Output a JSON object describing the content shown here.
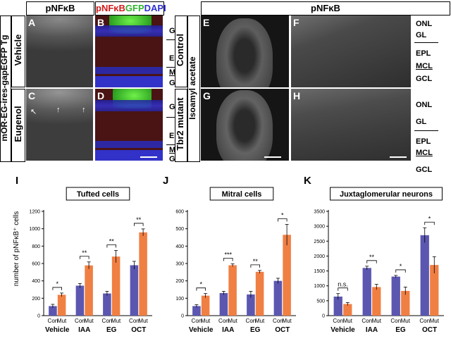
{
  "left_block": {
    "col_headers": [
      "pNFκB",
      ""
    ],
    "merge_header": {
      "p": "pNFκB",
      "g": "GFP",
      "d": "DAPI"
    },
    "row_title": "mOR-EG-ires-gapEGFP Tg",
    "rows": [
      "Vehicle",
      "Eugenol"
    ],
    "panel_letters": [
      "A",
      "B",
      "C",
      "D"
    ],
    "layers_top": [
      "GL",
      "EPL",
      "MCL",
      "GCL"
    ],
    "layers_bottom": [
      "GL",
      "EPL",
      "MCL",
      "GCL"
    ]
  },
  "right_block": {
    "header": "pNFκB",
    "row_title": "Isoamyl acetate",
    "rows": [
      "Control",
      "Tbr2 mutant"
    ],
    "panel_letters": [
      "E",
      "F",
      "G",
      "H"
    ],
    "layers_top": [
      "ONL",
      "GL",
      "EPL",
      "MCL",
      "GCL"
    ],
    "layers_bottom": [
      "ONL",
      "GL",
      "EPL",
      "MCL",
      "GCL"
    ]
  },
  "colors": {
    "con": "#5b57b0",
    "mut": "#f07f43",
    "merge_green": "#4ee82f",
    "merge_blue": "#3b3bdc",
    "merge_red": "#d11a1a"
  },
  "chart_data": [
    {
      "panel": "I",
      "type": "bar",
      "title": "Tufted cells",
      "ylabel": "number of pNFκB⁺ cells",
      "categories": [
        "Vehicle",
        "IAA",
        "EG",
        "OCT"
      ],
      "sub_labels": [
        "Con",
        "Mut"
      ],
      "ylim": [
        0,
        1200
      ],
      "yticks": [
        0,
        200,
        400,
        600,
        800,
        1000,
        1200
      ],
      "series": [
        {
          "name": "Con",
          "values": [
            110,
            345,
            255,
            580
          ],
          "errors": [
            20,
            25,
            25,
            45
          ]
        },
        {
          "name": "Mut",
          "values": [
            240,
            578,
            680,
            958
          ],
          "errors": [
            20,
            40,
            70,
            40
          ]
        }
      ],
      "significance": [
        "*",
        "**",
        "**",
        "**"
      ]
    },
    {
      "panel": "J",
      "type": "bar",
      "title": "Mitral cells",
      "categories": [
        "Vehicle",
        "IAA",
        "EG",
        "OCT"
      ],
      "sub_labels": [
        "Con",
        "Mut"
      ],
      "ylim": [
        0,
        600
      ],
      "yticks": [
        0,
        100,
        200,
        300,
        400,
        500,
        600
      ],
      "series": [
        {
          "name": "Con",
          "values": [
            55,
            130,
            122,
            200
          ],
          "errors": [
            8,
            10,
            18,
            15
          ]
        },
        {
          "name": "Mut",
          "values": [
            115,
            290,
            252,
            465
          ],
          "errors": [
            12,
            8,
            8,
            60
          ]
        }
      ],
      "significance": [
        "*",
        "***",
        "**",
        "*"
      ]
    },
    {
      "panel": "K",
      "type": "bar",
      "title": "Juxtaglomerular neurons",
      "categories": [
        "Vehicle",
        "IAA",
        "EG",
        "OCT"
      ],
      "sub_labels": [
        "Con",
        "Mut"
      ],
      "ylim": [
        0,
        3500
      ],
      "yticks": [
        0,
        500,
        1000,
        1500,
        2000,
        2500,
        3000,
        3500
      ],
      "series": [
        {
          "name": "Con",
          "values": [
            640,
            1600,
            1310,
            2700
          ],
          "errors": [
            100,
            60,
            40,
            250
          ]
        },
        {
          "name": "Mut",
          "values": [
            390,
            960,
            830,
            1700
          ],
          "errors": [
            50,
            90,
            130,
            280
          ]
        }
      ],
      "significance": [
        "n.s.",
        "**",
        "*",
        "*"
      ]
    }
  ]
}
